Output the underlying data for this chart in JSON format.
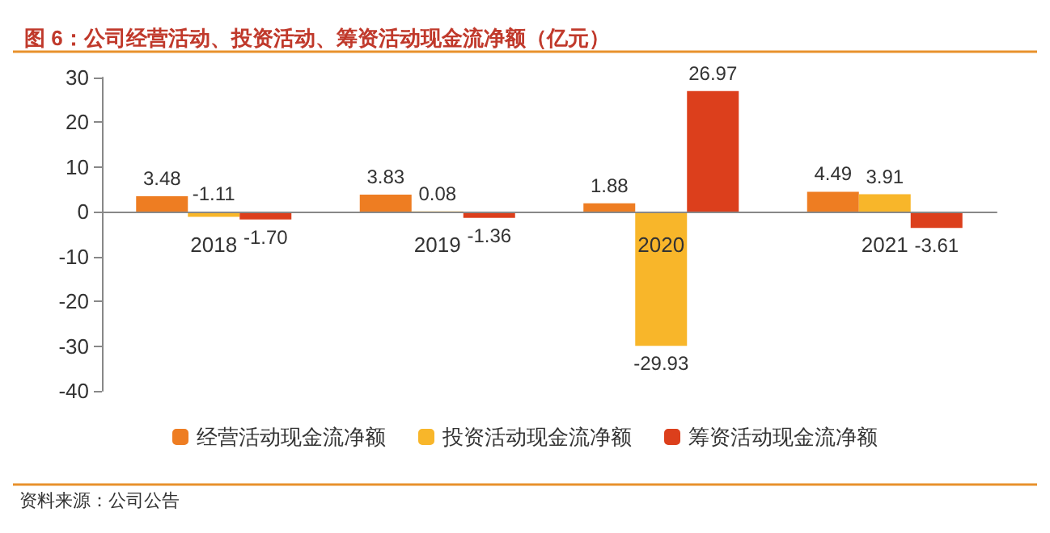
{
  "chart_data": {
    "type": "bar",
    "title": "图 6：公司经营活动、投资活动、筹资活动现金流净额（亿元）",
    "categories": [
      "2018",
      "2019",
      "2020",
      "2021"
    ],
    "series": [
      {
        "name": "经营活动现金流净额",
        "color": "#ee7d22",
        "values": [
          3.48,
          3.83,
          1.88,
          4.49
        ],
        "value_labels": [
          "3.48",
          "3.83",
          "1.88",
          "4.49"
        ]
      },
      {
        "name": "投资活动现金流净额",
        "color": "#f8b62a",
        "values": [
          -1.11,
          0.08,
          -29.93,
          3.91
        ],
        "value_labels": [
          "-1.11",
          "0.08",
          "-29.93",
          "3.91"
        ]
      },
      {
        "name": "筹资活动现金流净额",
        "color": "#dc3f1c",
        "values": [
          -1.7,
          -1.36,
          26.97,
          -3.61
        ],
        "value_labels": [
          "-1.70",
          "-1.36",
          "26.97",
          "-3.61"
        ]
      }
    ],
    "ylim": [
      -40,
      30
    ],
    "yticks": [
      -40,
      -30,
      -20,
      -10,
      0,
      10,
      20,
      30
    ],
    "grid": false,
    "legend": "bottom",
    "annotations": [
      "资料来源：公司公告"
    ]
  }
}
